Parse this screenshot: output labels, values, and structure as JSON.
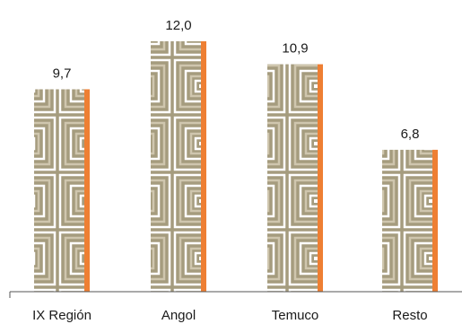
{
  "chart_data": {
    "type": "bar",
    "title": "",
    "xlabel": "",
    "ylabel": "",
    "categories": [
      "IX Región",
      "Angol",
      "Temuco",
      "Resto"
    ],
    "values": [
      9.7,
      12.0,
      10.9,
      6.8
    ],
    "value_labels": [
      "9,7",
      "12,0",
      "10,9",
      "6,8"
    ],
    "ylim": [
      0,
      12.0
    ],
    "grid": false,
    "legend": "none",
    "colors": {
      "pattern_dark": "#a59c7e",
      "pattern_mid": "#cfc6ae",
      "pattern_light": "#ffffff",
      "accent": "#ee7f33",
      "axis": "#555555"
    }
  }
}
